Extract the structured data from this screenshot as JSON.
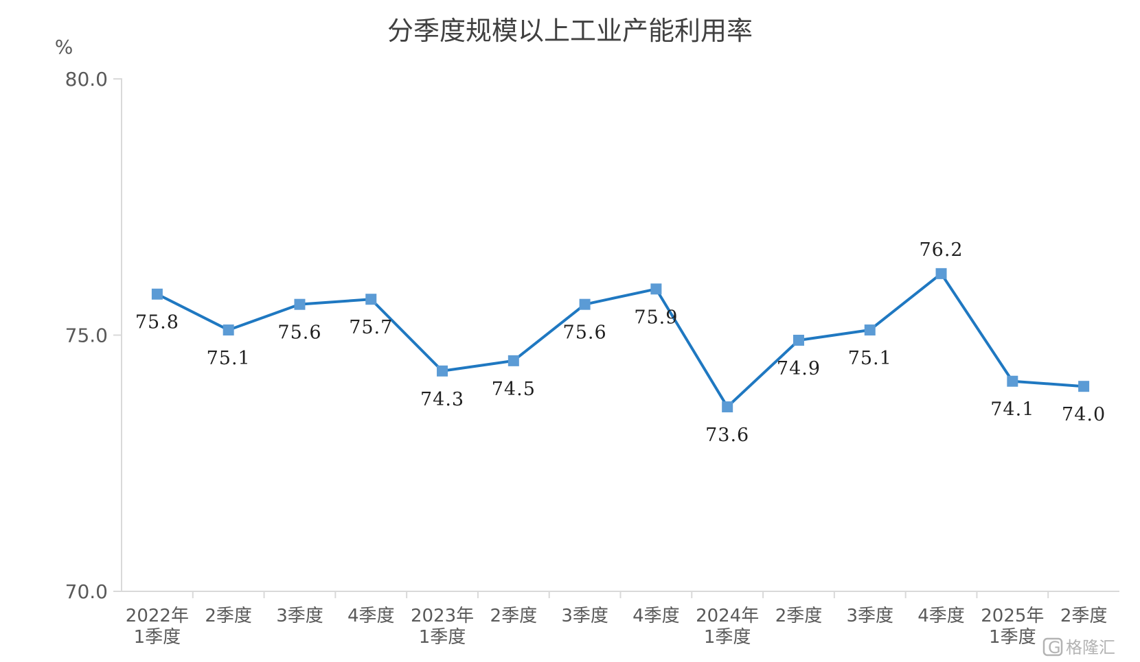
{
  "chart_data": {
    "type": "line",
    "title": "分季度规模以上工业产能利用率",
    "ylabel": "%",
    "ylim": [
      70,
      80
    ],
    "yticks": [
      "70.0",
      "75.0",
      "80.0"
    ],
    "grid": false,
    "categories": [
      [
        "2022年",
        "1季度"
      ],
      [
        "2季度"
      ],
      [
        "3季度"
      ],
      [
        "4季度"
      ],
      [
        "2023年",
        "1季度"
      ],
      [
        "2季度"
      ],
      [
        "3季度"
      ],
      [
        "4季度"
      ],
      [
        "2024年",
        "1季度"
      ],
      [
        "2季度"
      ],
      [
        "3季度"
      ],
      [
        "4季度"
      ],
      [
        "2025年",
        "1季度"
      ],
      [
        "2季度"
      ]
    ],
    "series": [
      {
        "values": [
          75.8,
          75.1,
          75.6,
          75.7,
          74.3,
          74.5,
          75.6,
          75.9,
          73.6,
          74.9,
          75.1,
          76.2,
          74.1,
          74.0
        ],
        "labels": [
          "75.8",
          "75.1",
          "75.6",
          "75.7",
          "74.3",
          "74.5",
          "75.6",
          "75.9",
          "73.6",
          "74.9",
          "75.1",
          "76.2",
          "74.1",
          "74.0"
        ],
        "label_pos": [
          "below",
          "below",
          "below",
          "below",
          "below",
          "below",
          "below",
          "below",
          "below",
          "below",
          "below",
          "above",
          "below",
          "below"
        ]
      }
    ],
    "colors": {
      "line": "#1f78c1",
      "marker": "#5b9bd5"
    }
  },
  "watermark": {
    "text": "格隆汇",
    "icon": "g-logo-icon"
  }
}
